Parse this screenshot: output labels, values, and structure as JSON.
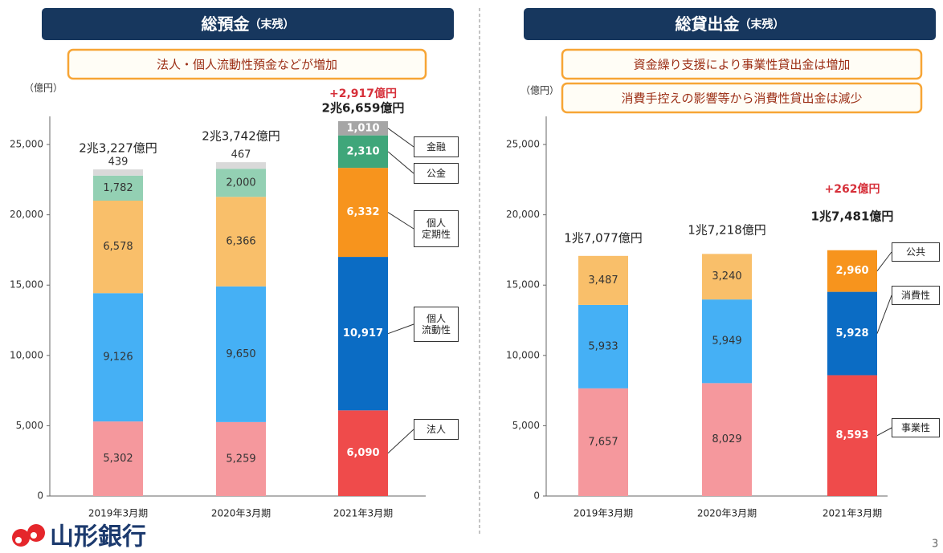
{
  "chart_data": [
    {
      "type": "bar",
      "stacked": true,
      "title": "総預金",
      "title_suffix": "（末残）",
      "notes": [
        "法人・個人流動性預金などが増加"
      ],
      "y_label": "（億円）",
      "categories": [
        "2019年3月期",
        "2020年3月期",
        "2021年3月期"
      ],
      "total_labels": [
        "2兆3,227億円",
        "2兆3,742億円",
        "2兆6,659億円"
      ],
      "annotation": "+2,917億円",
      "ylim": [
        0,
        27000
      ],
      "yticks": [
        0,
        {
          "value": 5000,
          "label": "5,000"
        },
        {
          "value": 10000,
          "label": "10,000"
        },
        {
          "value": 15000,
          "label": "15,000"
        },
        {
          "value": 20000,
          "label": "20,000"
        },
        {
          "value": 25000,
          "label": "25,000"
        }
      ],
      "label_colors": [
        "#333333",
        "#333333",
        "#ffffff"
      ],
      "series": [
        {
          "name": "法人",
          "colors": [
            "#f5989d",
            "#f5989d",
            "#ef4b4b"
          ],
          "values": [
            5302,
            5259,
            6090
          ],
          "value_labels": [
            "5,302",
            "5,259",
            "6,090"
          ]
        },
        {
          "name": "個人\n流動性",
          "colors": [
            "#45b0f5",
            "#45b0f5",
            "#0b6cc4"
          ],
          "values": [
            9126,
            9650,
            10917
          ],
          "value_labels": [
            "9,126",
            "9,650",
            "10,917"
          ]
        },
        {
          "name": "個人\n定期性",
          "colors": [
            "#f9bf6a",
            "#f9bf6a",
            "#f7941d"
          ],
          "values": [
            6578,
            6366,
            6332
          ],
          "value_labels": [
            "6,578",
            "6,366",
            "6,332"
          ]
        },
        {
          "name": "公金",
          "colors": [
            "#93d0b3",
            "#93d0b3",
            "#3fa67a"
          ],
          "values": [
            1782,
            2000,
            2310
          ],
          "value_labels": [
            "1,782",
            "2,000",
            "2,310"
          ]
        },
        {
          "name": "金融",
          "colors": [
            "#d9d9d9",
            "#d9d9d9",
            "#a6a6a6"
          ],
          "values": [
            439,
            467,
            1010
          ],
          "value_labels": [
            "439",
            "467",
            "1,010"
          ]
        }
      ]
    },
    {
      "type": "bar",
      "stacked": true,
      "title": "総貸出金",
      "title_suffix": "（末残）",
      "notes": [
        "資金繰り支援により事業性貸出金は増加",
        "消費手控えの影響等から消費性貸出金は減少"
      ],
      "y_label": "（億円）",
      "categories": [
        "2019年3月期",
        "2020年3月期",
        "2021年3月期"
      ],
      "total_labels": [
        "1兆7,077億円",
        "1兆7,218億円",
        "1兆7,481億円"
      ],
      "annotation": "+262億円",
      "ylim": [
        0,
        27000
      ],
      "yticks": [
        0,
        {
          "value": 5000,
          "label": "5,000"
        },
        {
          "value": 10000,
          "label": "10,000"
        },
        {
          "value": 15000,
          "label": "15,000"
        },
        {
          "value": 20000,
          "label": "20,000"
        },
        {
          "value": 25000,
          "label": "25,000"
        }
      ],
      "label_colors": [
        "#333333",
        "#333333",
        "#ffffff"
      ],
      "series": [
        {
          "name": "事業性",
          "colors": [
            "#f5989d",
            "#f5989d",
            "#ef4b4b"
          ],
          "values": [
            7657,
            8029,
            8593
          ],
          "value_labels": [
            "7,657",
            "8,029",
            "8,593"
          ]
        },
        {
          "name": "消費性",
          "colors": [
            "#45b0f5",
            "#45b0f5",
            "#0b6cc4"
          ],
          "values": [
            5933,
            5949,
            5928
          ],
          "value_labels": [
            "5,933",
            "5,949",
            "5,928"
          ]
        },
        {
          "name": "公共",
          "colors": [
            "#f9bf6a",
            "#f9bf6a",
            "#f7941d"
          ],
          "values": [
            3487,
            3240,
            2960
          ],
          "value_labels": [
            "3,487",
            "3,240",
            "2,960"
          ]
        }
      ]
    }
  ],
  "logo": "山形銀行",
  "page_number": "3"
}
